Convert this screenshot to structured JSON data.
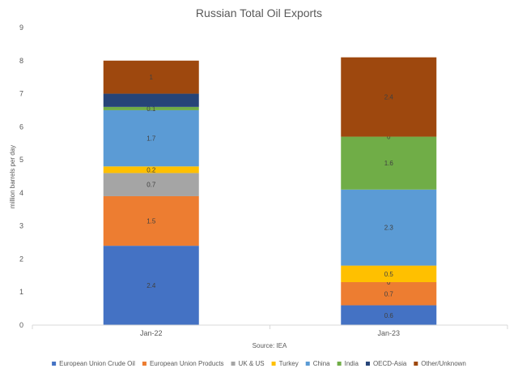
{
  "chart_data": {
    "type": "bar",
    "stacked": true,
    "title": "Russian Total Oil Exports",
    "xlabel": "Source: IEA",
    "ylabel": "million barrels per day",
    "ylim": [
      0,
      9
    ],
    "yticks": [
      0,
      1,
      2,
      3,
      4,
      5,
      6,
      7,
      8,
      9
    ],
    "grid": false,
    "legend_position": "bottom",
    "categories": [
      "Jan-22",
      "Jan-23"
    ],
    "series": [
      {
        "name": "European Union Crude Oil",
        "color": "#4472C4",
        "values": [
          2.4,
          0.6
        ],
        "labels": [
          "2.4",
          "0.6"
        ]
      },
      {
        "name": "European Union Products",
        "color": "#ED7D31",
        "values": [
          1.5,
          0.7
        ],
        "labels": [
          "1.5",
          "0.7"
        ]
      },
      {
        "name": "UK & US",
        "color": "#A5A5A5",
        "values": [
          0.7,
          0.0
        ],
        "labels": [
          "0.7",
          "0"
        ]
      },
      {
        "name": "Turkey",
        "color": "#FFC000",
        "values": [
          0.2,
          0.5
        ],
        "labels": [
          "0.2",
          "0.5"
        ]
      },
      {
        "name": "China",
        "color": "#5B9BD5",
        "values": [
          1.7,
          2.3
        ],
        "labels": [
          "1.7",
          "2.3"
        ]
      },
      {
        "name": "India",
        "color": "#70AD47",
        "values": [
          0.1,
          1.6
        ],
        "labels": [
          "0.1",
          "1.6"
        ]
      },
      {
        "name": "OECD-Asia",
        "color": "#264478",
        "values": [
          0.4,
          0.0
        ],
        "labels": [
          "",
          "0"
        ]
      },
      {
        "name": "Other/Unknown",
        "color": "#9E480E",
        "values": [
          1.0,
          2.4
        ],
        "labels": [
          "1",
          "2.4"
        ]
      }
    ]
  }
}
